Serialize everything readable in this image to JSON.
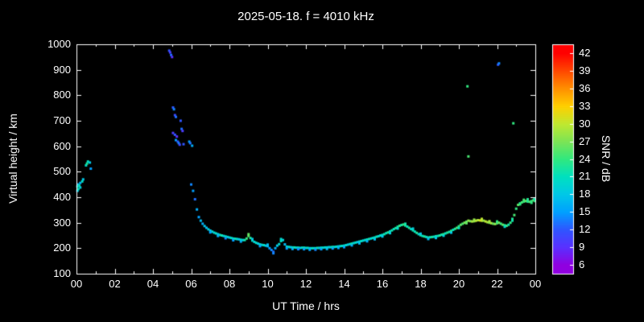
{
  "colors": {
    "background": "#000000",
    "text": "#ffffff",
    "frame": "#ffffff"
  },
  "chart_data": {
    "type": "scatter",
    "title": "2025-05-18. f = 4010 kHz",
    "xlabel": "UT Time / hrs",
    "ylabel": "Virtual height / km",
    "colorbar_label": "SNR / dB",
    "xlim": [
      0,
      24
    ],
    "ylim": [
      100,
      1000
    ],
    "x_ticks": [
      0,
      2,
      4,
      6,
      8,
      10,
      12,
      14,
      16,
      18,
      20,
      22,
      24
    ],
    "x_tick_labels": [
      "00",
      "02",
      "04",
      "06",
      "08",
      "10",
      "12",
      "14",
      "16",
      "18",
      "20",
      "22",
      "00"
    ],
    "x_minor_ticks": [
      1,
      3,
      5,
      7,
      9,
      11,
      13,
      15,
      17,
      19,
      21,
      23
    ],
    "y_ticks": [
      100,
      200,
      300,
      400,
      500,
      600,
      700,
      800,
      900,
      1000
    ],
    "y_tick_labels": [
      "100",
      "200",
      "300",
      "400",
      "500",
      "600",
      "700",
      "800",
      "900",
      "1000"
    ],
    "colorbar_ticks": [
      6,
      9,
      12,
      15,
      18,
      21,
      24,
      27,
      30,
      33,
      36,
      39,
      42
    ],
    "colorbar_range": [
      4.5,
      43.5
    ],
    "colormap_stops": [
      [
        6,
        "#9000e0"
      ],
      [
        9,
        "#5a30ff"
      ],
      [
        12,
        "#2f55ff"
      ],
      [
        15,
        "#00a0ff"
      ],
      [
        18,
        "#00c8e8"
      ],
      [
        21,
        "#00e0c0"
      ],
      [
        24,
        "#30e880"
      ],
      [
        27,
        "#7ce455"
      ],
      [
        30,
        "#c0e830"
      ],
      [
        33,
        "#ffd000"
      ],
      [
        36,
        "#ff9000"
      ],
      [
        39,
        "#ff4800"
      ],
      [
        42,
        "#ff0000"
      ]
    ],
    "grid": false,
    "legend": "colorbar-right",
    "points": [
      [
        0.05,
        425,
        18
      ],
      [
        0.05,
        442,
        20
      ],
      [
        0.1,
        432,
        21
      ],
      [
        0.1,
        450,
        17
      ],
      [
        0.15,
        445,
        22
      ],
      [
        0.2,
        438,
        19
      ],
      [
        0.2,
        456,
        16
      ],
      [
        0.3,
        462,
        21
      ],
      [
        0.35,
        470,
        18
      ],
      [
        0.5,
        525,
        20
      ],
      [
        0.55,
        532,
        23
      ],
      [
        0.6,
        540,
        21
      ],
      [
        0.7,
        536,
        18
      ],
      [
        0.75,
        512,
        15
      ],
      [
        4.85,
        975,
        12
      ],
      [
        4.9,
        968,
        10
      ],
      [
        4.95,
        958,
        13
      ],
      [
        5.0,
        950,
        9
      ],
      [
        5.05,
        752,
        12
      ],
      [
        5.1,
        745,
        14
      ],
      [
        5.15,
        722,
        11
      ],
      [
        5.2,
        715,
        13
      ],
      [
        5.05,
        652,
        10
      ],
      [
        5.15,
        645,
        12
      ],
      [
        5.25,
        638,
        9
      ],
      [
        5.2,
        624,
        15
      ],
      [
        5.3,
        618,
        12
      ],
      [
        5.35,
        612,
        14
      ],
      [
        5.45,
        700,
        12
      ],
      [
        5.4,
        606,
        11
      ],
      [
        5.5,
        668,
        13
      ],
      [
        5.55,
        660,
        10
      ],
      [
        5.6,
        608,
        12
      ],
      [
        5.9,
        618,
        15
      ],
      [
        5.95,
        612,
        13
      ],
      [
        6.05,
        602,
        16
      ],
      [
        6.0,
        450,
        14
      ],
      [
        6.1,
        425,
        15
      ],
      [
        6.2,
        392,
        13
      ],
      [
        6.3,
        352,
        16
      ],
      [
        6.4,
        322,
        15
      ],
      [
        6.5,
        308,
        17
      ],
      [
        6.6,
        296,
        16
      ],
      [
        6.7,
        287,
        18
      ],
      [
        6.8,
        280,
        17
      ],
      [
        6.9,
        274,
        19
      ],
      [
        7.0,
        269,
        18
      ],
      [
        7.1,
        265,
        20
      ],
      [
        7.2,
        261,
        19
      ],
      [
        7.3,
        258,
        21
      ],
      [
        7.4,
        255,
        18
      ],
      [
        7.5,
        252,
        20
      ],
      [
        7.6,
        250,
        22
      ],
      [
        7.7,
        248,
        19
      ],
      [
        7.8,
        246,
        21
      ],
      [
        7.9,
        244,
        20
      ],
      [
        8.0,
        242,
        18
      ],
      [
        8.1,
        240,
        21
      ],
      [
        8.2,
        238,
        19
      ],
      [
        8.3,
        237,
        22
      ],
      [
        8.4,
        236,
        20
      ],
      [
        8.5,
        235,
        18
      ],
      [
        8.6,
        233,
        21
      ],
      [
        8.7,
        232,
        19
      ],
      [
        8.8,
        232,
        22
      ],
      [
        8.9,
        238,
        24
      ],
      [
        9.0,
        248,
        26
      ],
      [
        9.1,
        240,
        23
      ],
      [
        9.2,
        230,
        21
      ],
      [
        9.3,
        225,
        19
      ],
      [
        9.4,
        221,
        21
      ],
      [
        9.5,
        218,
        18
      ],
      [
        9.6,
        215,
        20
      ],
      [
        9.7,
        213,
        19
      ],
      [
        9.8,
        212,
        21
      ],
      [
        9.9,
        210,
        18
      ],
      [
        10.0,
        208,
        17
      ],
      [
        10.1,
        200,
        15
      ],
      [
        10.2,
        193,
        14
      ],
      [
        10.3,
        186,
        13
      ],
      [
        10.4,
        200,
        16
      ],
      [
        10.5,
        210,
        18
      ],
      [
        10.6,
        216,
        20
      ],
      [
        10.7,
        228,
        21
      ],
      [
        10.8,
        232,
        19
      ],
      [
        10.9,
        215,
        17
      ],
      [
        11.0,
        206,
        19
      ],
      [
        11.1,
        205,
        21
      ],
      [
        11.2,
        204,
        18
      ],
      [
        11.3,
        203,
        20
      ],
      [
        11.4,
        203,
        22
      ],
      [
        11.5,
        202,
        19
      ],
      [
        11.6,
        202,
        21
      ],
      [
        11.7,
        201,
        18
      ],
      [
        11.8,
        202,
        20
      ],
      [
        11.9,
        202,
        22
      ],
      [
        12.0,
        201,
        19
      ],
      [
        12.1,
        201,
        21
      ],
      [
        12.2,
        200,
        18
      ],
      [
        12.3,
        200,
        20
      ],
      [
        12.4,
        200,
        21
      ],
      [
        12.5,
        200,
        19
      ],
      [
        12.6,
        201,
        22
      ],
      [
        12.7,
        201,
        18
      ],
      [
        12.8,
        202,
        20
      ],
      [
        12.9,
        202,
        21
      ],
      [
        13.0,
        203,
        19
      ],
      [
        13.1,
        203,
        21
      ],
      [
        13.2,
        204,
        18
      ],
      [
        13.3,
        204,
        20
      ],
      [
        13.4,
        205,
        22
      ],
      [
        13.5,
        205,
        19
      ],
      [
        13.6,
        206,
        21
      ],
      [
        13.7,
        207,
        18
      ],
      [
        13.8,
        208,
        20
      ],
      [
        13.9,
        209,
        21
      ],
      [
        14.0,
        210,
        19
      ],
      [
        14.1,
        212,
        21
      ],
      [
        14.2,
        214,
        18
      ],
      [
        14.3,
        216,
        20
      ],
      [
        14.4,
        218,
        22
      ],
      [
        14.5,
        220,
        19
      ],
      [
        14.6,
        222,
        21
      ],
      [
        14.7,
        224,
        18
      ],
      [
        14.8,
        226,
        20
      ],
      [
        14.9,
        228,
        21
      ],
      [
        15.0,
        230,
        19
      ],
      [
        15.1,
        232,
        21
      ],
      [
        15.2,
        234,
        20
      ],
      [
        15.3,
        236,
        22
      ],
      [
        15.4,
        238,
        19
      ],
      [
        15.5,
        240,
        21
      ],
      [
        15.6,
        242,
        20
      ],
      [
        15.7,
        245,
        22
      ],
      [
        15.8,
        247,
        19
      ],
      [
        15.9,
        250,
        21
      ],
      [
        16.0,
        252,
        20
      ],
      [
        16.1,
        255,
        22
      ],
      [
        16.2,
        259,
        21
      ],
      [
        16.3,
        262,
        23
      ],
      [
        16.4,
        266,
        20
      ],
      [
        16.5,
        270,
        22
      ],
      [
        16.6,
        275,
        21
      ],
      [
        16.7,
        279,
        23
      ],
      [
        16.8,
        284,
        22
      ],
      [
        16.9,
        288,
        24
      ],
      [
        17.0,
        291,
        22
      ],
      [
        17.1,
        293,
        24
      ],
      [
        17.2,
        289,
        23
      ],
      [
        17.3,
        285,
        21
      ],
      [
        17.4,
        280,
        23
      ],
      [
        17.5,
        275,
        20
      ],
      [
        17.6,
        270,
        22
      ],
      [
        17.7,
        265,
        21
      ],
      [
        17.8,
        260,
        23
      ],
      [
        17.9,
        255,
        20
      ],
      [
        18.0,
        251,
        22
      ],
      [
        18.1,
        248,
        21
      ],
      [
        18.2,
        246,
        23
      ],
      [
        18.3,
        244,
        20
      ],
      [
        18.4,
        242,
        22
      ],
      [
        18.5,
        243,
        21
      ],
      [
        18.6,
        244,
        23
      ],
      [
        18.7,
        245,
        20
      ],
      [
        18.8,
        247,
        22
      ],
      [
        18.9,
        248,
        21
      ],
      [
        19.0,
        250,
        23
      ],
      [
        19.1,
        253,
        22
      ],
      [
        19.2,
        255,
        24
      ],
      [
        19.3,
        258,
        21
      ],
      [
        19.4,
        261,
        23
      ],
      [
        19.5,
        264,
        22
      ],
      [
        19.6,
        268,
        24
      ],
      [
        19.7,
        272,
        21
      ],
      [
        19.8,
        276,
        23
      ],
      [
        19.9,
        280,
        25
      ],
      [
        20.0,
        286,
        24
      ],
      [
        20.1,
        292,
        26
      ],
      [
        20.2,
        296,
        25
      ],
      [
        20.3,
        300,
        27
      ],
      [
        20.4,
        304,
        26
      ],
      [
        20.5,
        308,
        28
      ],
      [
        20.6,
        306,
        27
      ],
      [
        20.7,
        305,
        29
      ],
      [
        20.8,
        306,
        28
      ],
      [
        20.9,
        308,
        30
      ],
      [
        21.0,
        310,
        29
      ],
      [
        21.1,
        309,
        31
      ],
      [
        21.2,
        308,
        30
      ],
      [
        21.3,
        308,
        28
      ],
      [
        21.4,
        305,
        30
      ],
      [
        21.5,
        302,
        29
      ],
      [
        21.6,
        300,
        27
      ],
      [
        21.7,
        298,
        29
      ],
      [
        21.8,
        296,
        26
      ],
      [
        21.9,
        295,
        28
      ],
      [
        22.0,
        298,
        25
      ],
      [
        22.1,
        300,
        27
      ],
      [
        22.2,
        296,
        24
      ],
      [
        22.3,
        292,
        26
      ],
      [
        22.4,
        290,
        23
      ],
      [
        22.5,
        288,
        25
      ],
      [
        22.6,
        292,
        22
      ],
      [
        22.7,
        300,
        24
      ],
      [
        22.8,
        315,
        23
      ],
      [
        22.9,
        330,
        25
      ],
      [
        23.0,
        355,
        24
      ],
      [
        23.1,
        370,
        26
      ],
      [
        23.2,
        376,
        23
      ],
      [
        23.3,
        380,
        25
      ],
      [
        23.4,
        383,
        24
      ],
      [
        23.5,
        385,
        26
      ],
      [
        23.6,
        383,
        23
      ],
      [
        23.7,
        382,
        25
      ],
      [
        23.8,
        385,
        24
      ],
      [
        23.9,
        388,
        26
      ],
      [
        23.98,
        385,
        24
      ],
      [
        7.0,
        262,
        15
      ],
      [
        7.4,
        248,
        16
      ],
      [
        7.8,
        239,
        14
      ],
      [
        8.2,
        231,
        15
      ],
      [
        8.6,
        226,
        16
      ],
      [
        9.0,
        255,
        26
      ],
      [
        9.2,
        236,
        18
      ],
      [
        9.6,
        208,
        15
      ],
      [
        10.0,
        214,
        17
      ],
      [
        10.3,
        180,
        14
      ],
      [
        10.7,
        236,
        20
      ],
      [
        11.0,
        199,
        15
      ],
      [
        11.3,
        197,
        16
      ],
      [
        11.6,
        196,
        14
      ],
      [
        11.9,
        196,
        15
      ],
      [
        12.2,
        194,
        16
      ],
      [
        12.5,
        194,
        14
      ],
      [
        12.8,
        196,
        15
      ],
      [
        13.1,
        197,
        17
      ],
      [
        13.4,
        199,
        15
      ],
      [
        13.7,
        201,
        16
      ],
      [
        14.0,
        204,
        15
      ],
      [
        14.4,
        211,
        16
      ],
      [
        14.8,
        219,
        17
      ],
      [
        15.2,
        227,
        16
      ],
      [
        15.6,
        235,
        17
      ],
      [
        16.0,
        246,
        18
      ],
      [
        16.4,
        259,
        19
      ],
      [
        16.8,
        277,
        20
      ],
      [
        17.2,
        296,
        22
      ],
      [
        17.6,
        277,
        19
      ],
      [
        18.0,
        257,
        18
      ],
      [
        18.4,
        236,
        17
      ],
      [
        18.8,
        240,
        18
      ],
      [
        19.2,
        249,
        19
      ],
      [
        19.6,
        261,
        18
      ],
      [
        20.0,
        279,
        21
      ],
      [
        20.4,
        298,
        26
      ],
      [
        20.8,
        312,
        28
      ],
      [
        21.2,
        315,
        30
      ],
      [
        21.6,
        306,
        29
      ],
      [
        22.0,
        305,
        24
      ],
      [
        22.4,
        284,
        20
      ],
      [
        22.8,
        308,
        22
      ],
      [
        23.2,
        372,
        24
      ],
      [
        23.4,
        390,
        25
      ],
      [
        23.6,
        392,
        23
      ],
      [
        23.8,
        378,
        24
      ],
      [
        23.95,
        392,
        22
      ],
      [
        20.45,
        835,
        24
      ],
      [
        20.5,
        560,
        25
      ],
      [
        22.05,
        920,
        12
      ],
      [
        22.1,
        925,
        14
      ],
      [
        22.85,
        690,
        24
      ]
    ]
  }
}
